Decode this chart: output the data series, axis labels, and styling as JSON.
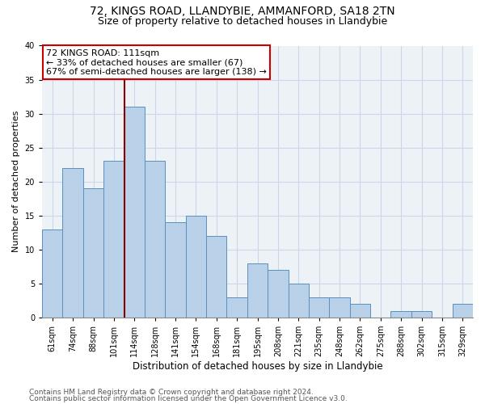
{
  "title_line1": "72, KINGS ROAD, LLANDYBIE, AMMANFORD, SA18 2TN",
  "title_line2": "Size of property relative to detached houses in Llandybie",
  "xlabel": "Distribution of detached houses by size in Llandybie",
  "ylabel": "Number of detached properties",
  "categories": [
    "61sqm",
    "74sqm",
    "88sqm",
    "101sqm",
    "114sqm",
    "128sqm",
    "141sqm",
    "154sqm",
    "168sqm",
    "181sqm",
    "195sqm",
    "208sqm",
    "221sqm",
    "235sqm",
    "248sqm",
    "262sqm",
    "275sqm",
    "288sqm",
    "302sqm",
    "315sqm",
    "329sqm"
  ],
  "values": [
    13,
    22,
    19,
    23,
    31,
    23,
    14,
    15,
    12,
    3,
    8,
    7,
    5,
    3,
    3,
    2,
    0,
    1,
    1,
    0,
    2
  ],
  "bar_color": "#b8d0e8",
  "bar_edge_color": "#5a8fbe",
  "vline_color": "#8b0000",
  "vline_x_idx": 4,
  "annotation_text_line1": "72 KINGS ROAD: 111sqm",
  "annotation_text_line2": "← 33% of detached houses are smaller (67)",
  "annotation_text_line3": "67% of semi-detached houses are larger (138) →",
  "ylim": [
    0,
    40
  ],
  "yticks": [
    0,
    5,
    10,
    15,
    20,
    25,
    30,
    35,
    40
  ],
  "grid_color": "#c8d8e8",
  "bg_color": "#edf2f7",
  "footer_line1": "Contains HM Land Registry data © Crown copyright and database right 2024.",
  "footer_line2": "Contains public sector information licensed under the Open Government Licence v3.0.",
  "title1_fontsize": 10,
  "title2_fontsize": 9,
  "xlabel_fontsize": 8.5,
  "ylabel_fontsize": 8,
  "tick_fontsize": 7,
  "ann_fontsize": 8,
  "footer_fontsize": 6.5
}
